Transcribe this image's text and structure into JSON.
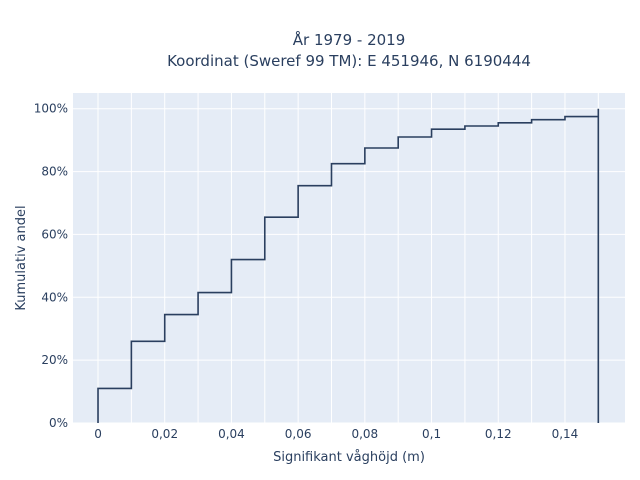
{
  "chart_data": {
    "type": "line",
    "subtype": "ecdf-step",
    "title_lines": [
      "År 1979 - 2019",
      "Koordinat (Sweref 99 TM): E 451946, N 6190444"
    ],
    "xlabel": "Signifikant våghöjd (m)",
    "ylabel": "Kumulativ andel",
    "xlim": [
      -0.0075,
      0.158
    ],
    "ylim": [
      0,
      1.05
    ],
    "x_ticks": [
      {
        "value": 0,
        "label": "0"
      },
      {
        "value": 0.02,
        "label": "0,02"
      },
      {
        "value": 0.04,
        "label": "0,04"
      },
      {
        "value": 0.06,
        "label": "0,06"
      },
      {
        "value": 0.08,
        "label": "0,08"
      },
      {
        "value": 0.1,
        "label": "0,1"
      },
      {
        "value": 0.12,
        "label": "0,12"
      },
      {
        "value": 0.14,
        "label": "0,14"
      }
    ],
    "y_ticks": [
      {
        "value": 0,
        "label": "0%"
      },
      {
        "value": 0.2,
        "label": "20%"
      },
      {
        "value": 0.4,
        "label": "40%"
      },
      {
        "value": 0.6,
        "label": "60%"
      },
      {
        "value": 0.8,
        "label": "80%"
      },
      {
        "value": 1.0,
        "label": "100%"
      }
    ],
    "x_gridlines": [
      0,
      0.01,
      0.02,
      0.03,
      0.04,
      0.05,
      0.06,
      0.07,
      0.08,
      0.09,
      0.1,
      0.11,
      0.12,
      0.13,
      0.14,
      0.15
    ],
    "grid": true,
    "background_color": "#e5ecf6",
    "line_color": "#2a3f5f",
    "series": [
      {
        "x": [
          0,
          0.01,
          0.02,
          0.03,
          0.04,
          0.05,
          0.06,
          0.07,
          0.08,
          0.09,
          0.1,
          0.11,
          0.12,
          0.13,
          0.14,
          0.15
        ],
        "y": [
          0.11,
          0.26,
          0.345,
          0.415,
          0.52,
          0.655,
          0.755,
          0.825,
          0.875,
          0.91,
          0.935,
          0.945,
          0.955,
          0.965,
          0.975,
          1.0
        ]
      }
    ]
  }
}
